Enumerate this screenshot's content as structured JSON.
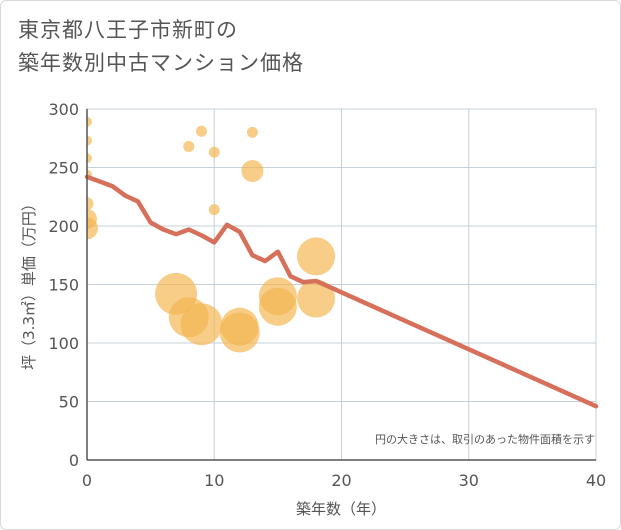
{
  "chart_data": {
    "type": "scatter",
    "title_lines": [
      "東京都八王子市新町の",
      "築年数別中古マンション価格"
    ],
    "xlabel": "築年数（年）",
    "ylabel": "坪（3.3㎡）単価（万円）",
    "xlim": [
      0,
      40
    ],
    "ylim": [
      0,
      300
    ],
    "xticks": [
      0,
      10,
      20,
      30,
      40
    ],
    "yticks": [
      0,
      50,
      100,
      150,
      200,
      250,
      300
    ],
    "grid": true,
    "annotation": "円の大きさは、取引のあった物件面積を示す",
    "colors": {
      "bubble": "#f3b54f",
      "line": "#d7705b",
      "grid": "#c4d0da",
      "axis": "#555555"
    },
    "bubbles": [
      {
        "x": 0,
        "y": 289,
        "size": 1
      },
      {
        "x": 0,
        "y": 273,
        "size": 1
      },
      {
        "x": 0,
        "y": 258,
        "size": 1
      },
      {
        "x": 0,
        "y": 244,
        "size": 1
      },
      {
        "x": 0,
        "y": 219,
        "size": 1.3
      },
      {
        "x": 0,
        "y": 206,
        "size": 2
      },
      {
        "x": 0,
        "y": 198,
        "size": 2.2
      },
      {
        "x": 7,
        "y": 142,
        "size": 4.2
      },
      {
        "x": 8,
        "y": 268,
        "size": 1.1
      },
      {
        "x": 8,
        "y": 122,
        "size": 4
      },
      {
        "x": 9,
        "y": 281,
        "size": 1.1
      },
      {
        "x": 9,
        "y": 116,
        "size": 4.2
      },
      {
        "x": 10,
        "y": 263,
        "size": 1.1
      },
      {
        "x": 10,
        "y": 214,
        "size": 1.1
      },
      {
        "x": 12,
        "y": 114,
        "size": 3.8
      },
      {
        "x": 12,
        "y": 109,
        "size": 4
      },
      {
        "x": 13,
        "y": 280,
        "size": 1.1
      },
      {
        "x": 13,
        "y": 247,
        "size": 2.2
      },
      {
        "x": 15,
        "y": 140,
        "size": 3.8
      },
      {
        "x": 15,
        "y": 131,
        "size": 3.8
      },
      {
        "x": 18,
        "y": 174,
        "size": 3.8
      },
      {
        "x": 18,
        "y": 138,
        "size": 3.8
      }
    ],
    "trend": {
      "x": [
        0,
        1,
        2,
        3,
        4,
        5,
        6,
        7,
        8,
        9,
        10,
        11,
        12,
        13,
        14,
        15,
        16,
        17,
        18,
        40
      ],
      "y": [
        242,
        238,
        234,
        226,
        221,
        203,
        197,
        193,
        197,
        192,
        186,
        201,
        195,
        175,
        170,
        178,
        157,
        152,
        153,
        46
      ]
    }
  }
}
